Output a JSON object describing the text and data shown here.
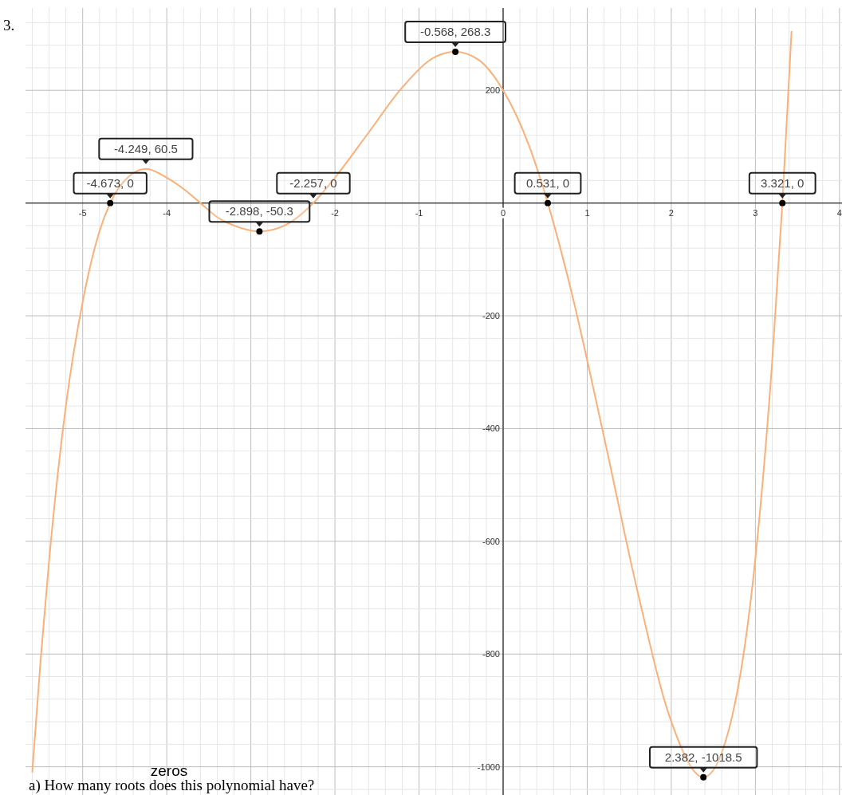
{
  "chart_data": {
    "type": "line",
    "xlim": [
      -5.68,
      4.03
    ],
    "ylim": [
      -1050,
      346
    ],
    "xticks": [
      -5,
      -4,
      -2,
      -1,
      0,
      1,
      2,
      3,
      4
    ],
    "yticks": [
      -1000,
      -800,
      -600,
      -400,
      -200,
      200
    ],
    "grid": true,
    "series": [
      {
        "color": "#fbb077",
        "marker": "none",
        "x": [
          -5.6,
          -5.5,
          -5.4,
          -5.2,
          -5.0,
          -4.8,
          -4.673,
          -4.5,
          -4.249,
          -4.0,
          -3.8,
          -3.6,
          -3.4,
          -3.2,
          -2.898,
          -2.6,
          -2.257,
          -2.0,
          -1.6,
          -1.2,
          -0.8,
          -0.568,
          -0.3,
          0,
          0.3,
          0.531,
          0.8,
          1.2,
          1.6,
          2.0,
          2.382,
          2.7,
          3.0,
          3.2,
          3.321,
          3.43
        ],
        "values": [
          -1010,
          -810,
          -635,
          -360,
          -175,
          -50,
          0,
          40,
          60.5,
          45,
          25,
          0,
          -25,
          -40,
          -50.3,
          -40,
          0,
          45,
          125,
          205,
          260,
          268.3,
          255,
          200,
          105,
          0,
          -150,
          -415,
          -690,
          -920,
          -1018.5,
          -925,
          -630,
          -280,
          0,
          305
        ]
      },
      {
        "type": "scatter",
        "color": "#000000",
        "marker": "circle",
        "x": [
          -4.673,
          -2.898,
          -0.568,
          0.531,
          2.382,
          3.321
        ],
        "values": [
          0,
          -50.3,
          268.3,
          0,
          -1018.5,
          0
        ]
      }
    ],
    "annotations": [
      "3.",
      {
        "text": "-4.673, 0",
        "x": -4.673,
        "y": 0
      },
      {
        "text": "-4.249, 60.5",
        "x": -4.249,
        "y": 60.5
      },
      {
        "text": "-2.898, -50.3",
        "x": -2.898,
        "y": -50.3
      },
      {
        "text": "-2.257, 0",
        "x": -2.257,
        "y": 0
      },
      {
        "text": "-0.568, 268.3",
        "x": -0.568,
        "y": 268.3
      },
      {
        "text": "0.531, 0",
        "x": 0.531,
        "y": 0
      },
      {
        "text": "2.382, -1018.5",
        "x": 2.382,
        "y": -1018.5
      },
      {
        "text": "3.321, 0",
        "x": 3.321,
        "y": 0
      },
      "zeros",
      "a)  How many roots does this polynomial have?"
    ]
  }
}
